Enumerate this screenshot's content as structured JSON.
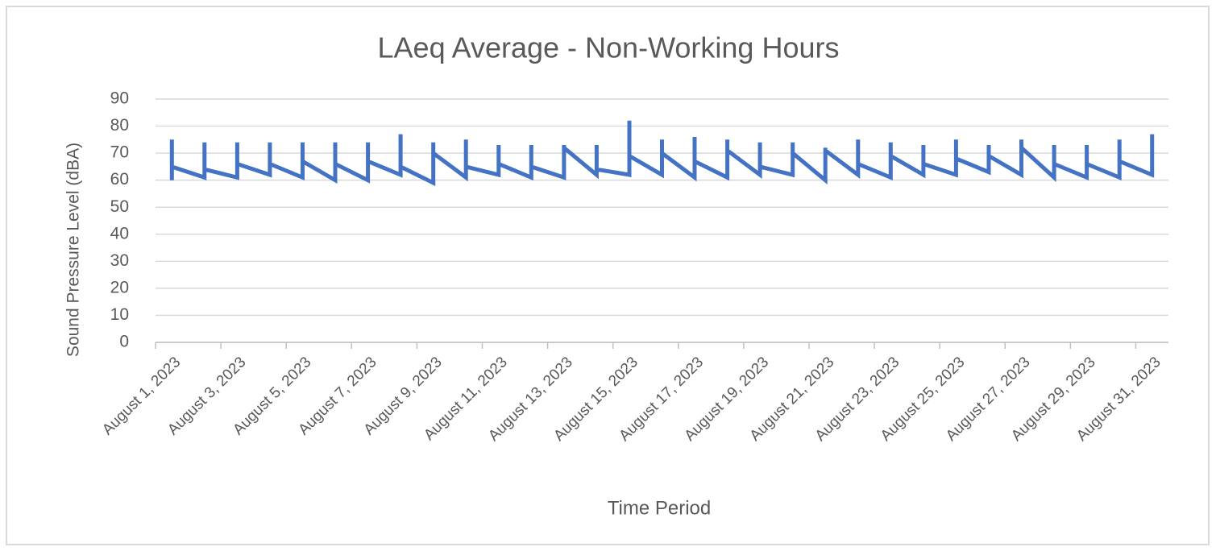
{
  "chart_data": {
    "type": "line",
    "title": "LAeq Average - Non-Working Hours",
    "y_label": "Sound Pressure Level (dBA)",
    "x_label": "Time Period",
    "categories": [
      "August 1, 2023",
      null,
      "August 3, 2023",
      null,
      "August 5, 2023",
      null,
      "August 7, 2023",
      null,
      "August 9, 2023",
      null,
      "August 11, 2023",
      null,
      "August 13, 2023",
      null,
      "August 15, 2023",
      null,
      "August 17, 2023",
      null,
      "August 19, 2023",
      null,
      "August 21, 2023",
      null,
      "August 23, 2023",
      null,
      "August 25, 2023",
      null,
      "August 27, 2023",
      null,
      "August 29, 2023",
      null,
      "August 31, 2023"
    ],
    "series": [
      {
        "color": "#4472c4",
        "values": [
          60,
          61,
          61,
          62,
          61,
          60,
          60,
          62,
          59,
          61,
          62,
          61,
          61,
          62,
          62,
          62,
          61,
          61,
          62,
          62,
          60,
          62,
          61,
          62,
          62,
          63,
          62,
          61,
          61,
          61,
          62
        ]
      },
      {
        "color": "#4472c4",
        "values": [
          75,
          74,
          74,
          74,
          74,
          74,
          74,
          77,
          74,
          75,
          73,
          73,
          73,
          73,
          82,
          75,
          76,
          75,
          74,
          74,
          72,
          75,
          74,
          73,
          75,
          73,
          75,
          73,
          73,
          75,
          77
        ]
      },
      {
        "color": "#4472c4",
        "values": [
          65,
          64,
          66,
          66,
          67,
          66,
          67,
          65,
          70,
          65,
          66,
          65,
          72,
          64,
          69,
          70,
          67,
          71,
          65,
          70,
          71,
          66,
          69,
          66,
          68,
          69,
          72,
          66,
          66,
          67,
          72
        ]
      }
    ],
    "ylim": [
      0,
      90
    ],
    "yticks": [
      0,
      10,
      20,
      30,
      40,
      50,
      60,
      70,
      80,
      90
    ],
    "grid": true
  }
}
